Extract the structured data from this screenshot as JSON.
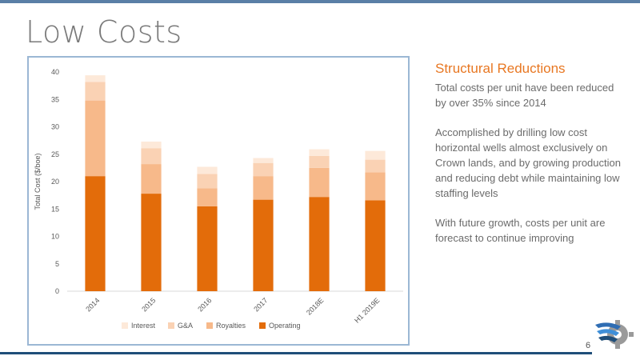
{
  "slide": {
    "title": "Low Costs",
    "page_number": "6"
  },
  "panel": {
    "heading": "Structural Reductions",
    "paragraphs": [
      "Total costs per unit have been reduced by over 35% since 2014",
      "Accomplished by drilling low cost horizontal wells almost exclusively on Crown lands, and by growing production and reducing debt while maintaining low staffing levels",
      "With future growth, costs per unit are forecast to continue improving"
    ]
  },
  "colors": {
    "accent": "#e87722",
    "frame": "#9bb7d4",
    "top_band": "#5a7fa6",
    "bottom_rule": "#1f4e79"
  },
  "chart_data": {
    "type": "bar",
    "stacked": true,
    "categories": [
      "2014",
      "2015",
      "2016",
      "2017",
      "2018E",
      "H1 2019E"
    ],
    "series": [
      {
        "name": "Operating",
        "color": "#e36c0a",
        "values": [
          21.0,
          17.8,
          15.5,
          16.7,
          17.2,
          16.6
        ]
      },
      {
        "name": "Royalties",
        "color": "#f7b98a",
        "values": [
          13.8,
          5.4,
          3.3,
          4.3,
          5.3,
          5.1
        ]
      },
      {
        "name": "G&A",
        "color": "#fad2b4",
        "values": [
          3.4,
          2.9,
          2.6,
          2.4,
          2.2,
          2.3
        ]
      },
      {
        "name": "Interest",
        "color": "#fde9d9",
        "values": [
          1.2,
          1.2,
          1.3,
          0.9,
          1.2,
          1.6
        ]
      }
    ],
    "legend_order": [
      "Interest",
      "G&A",
      "Royalties",
      "Operating"
    ],
    "ylabel": "Total Cost ($/boe)",
    "xlabel": "",
    "ylim": [
      0,
      40
    ],
    "yticks": [
      "0",
      "5",
      "10",
      "15",
      "20",
      "25",
      "30",
      "35",
      "40"
    ],
    "grid": false,
    "legend_position": "bottom"
  }
}
